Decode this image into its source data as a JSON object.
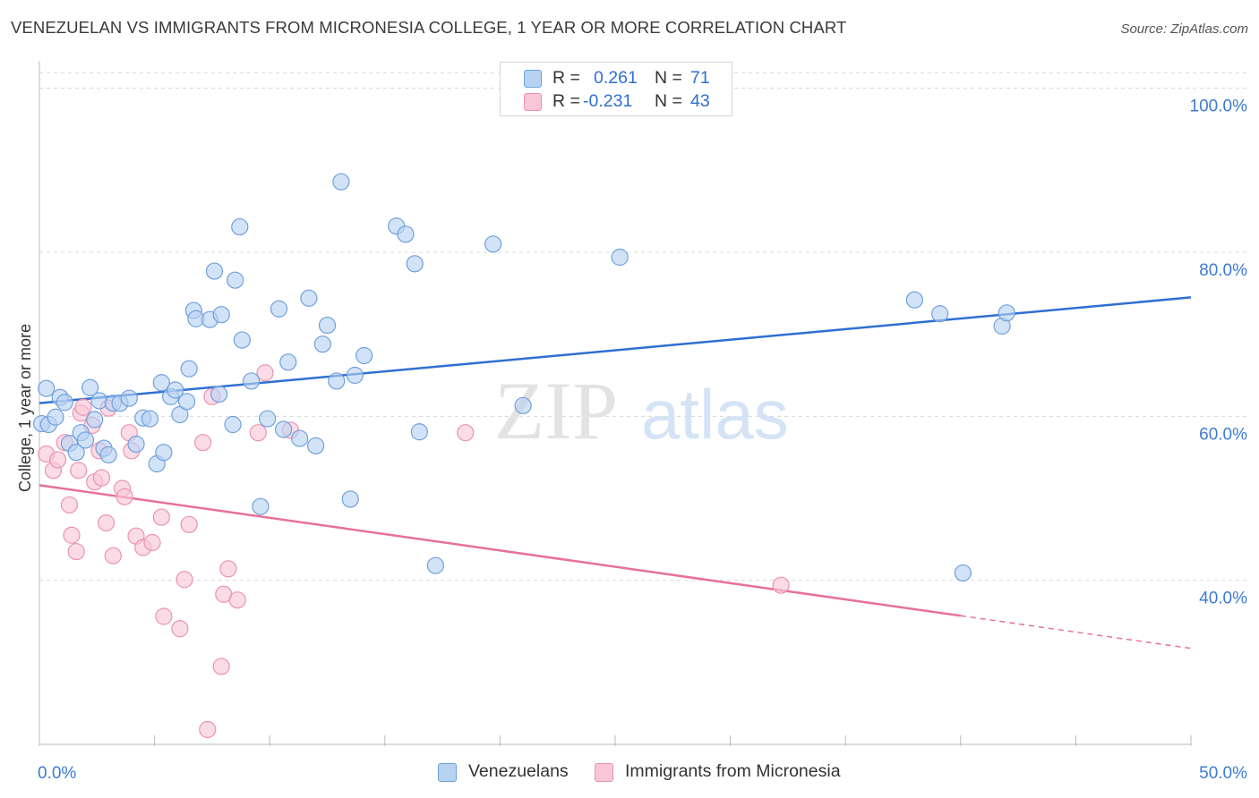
{
  "title": "VENEZUELAN VS IMMIGRANTS FROM MICRONESIA COLLEGE, 1 YEAR OR MORE CORRELATION CHART",
  "source": "Source: ZipAtlas.com",
  "watermark": {
    "zip": "ZIP",
    "atlas": "atlas"
  },
  "colors": {
    "blue_fill": "#b8d2f2",
    "blue_stroke": "#6fa0dc",
    "blue_line": "#2f6fd1",
    "pink_fill": "#f8c6d6",
    "pink_stroke": "#eb92b0",
    "pink_line": "#e8709a",
    "tick_text": "#3d7bd1",
    "grid": "#d8d8d8"
  },
  "legend": {
    "r_label": "R =",
    "n_label": "N =",
    "venezuelans": {
      "r": "0.261",
      "n": "71"
    },
    "micronesia": {
      "r": "-0.231",
      "n": "43"
    }
  },
  "chart_data": {
    "type": "scatter",
    "title": "VENEZUELAN VS IMMIGRANTS FROM MICRONESIA COLLEGE, 1 YEAR OR MORE CORRELATION CHART",
    "xlabel": "",
    "ylabel": "College, 1 year or more",
    "xlim": [
      0,
      50
    ],
    "ylim": [
      20,
      104
    ],
    "x_tick_labels": {
      "min": "0.0%",
      "max": "50.0%"
    },
    "x_tick_count": 11,
    "y_ticks": [
      {
        "value": 40,
        "label": "40.0%"
      },
      {
        "value": 60,
        "label": "60.0%"
      },
      {
        "value": 80,
        "label": "80.0%"
      },
      {
        "value": 100,
        "label": "100.0%"
      }
    ],
    "series": [
      {
        "name": "Venezuelans",
        "color": "#b8d2f2",
        "stroke": "#6fa0dc",
        "trend": {
          "x0": 0,
          "y0": 61.6,
          "x1": 50,
          "y1": 74.5,
          "dash_from": null
        },
        "points": [
          [
            0.1,
            59.1
          ],
          [
            0.3,
            63.4
          ],
          [
            0.4,
            59.0
          ],
          [
            0.7,
            59.9
          ],
          [
            0.9,
            62.3
          ],
          [
            1.1,
            61.7
          ],
          [
            1.3,
            56.7
          ],
          [
            1.6,
            55.6
          ],
          [
            1.8,
            58.0
          ],
          [
            2.0,
            57.1
          ],
          [
            2.2,
            63.5
          ],
          [
            2.4,
            59.6
          ],
          [
            2.6,
            61.9
          ],
          [
            2.8,
            56.1
          ],
          [
            3.0,
            55.3
          ],
          [
            3.2,
            61.6
          ],
          [
            3.5,
            61.6
          ],
          [
            3.9,
            62.2
          ],
          [
            4.2,
            56.6
          ],
          [
            4.5,
            59.8
          ],
          [
            4.8,
            59.7
          ],
          [
            5.1,
            54.2
          ],
          [
            5.3,
            64.1
          ],
          [
            5.4,
            55.6
          ],
          [
            5.7,
            62.4
          ],
          [
            5.9,
            63.2
          ],
          [
            6.1,
            60.2
          ],
          [
            6.4,
            61.8
          ],
          [
            6.5,
            65.8
          ],
          [
            6.7,
            72.9
          ],
          [
            6.8,
            71.9
          ],
          [
            7.4,
            71.8
          ],
          [
            7.6,
            77.7
          ],
          [
            7.8,
            62.7
          ],
          [
            7.9,
            72.4
          ],
          [
            8.4,
            59.0
          ],
          [
            8.5,
            76.6
          ],
          [
            8.7,
            83.1
          ],
          [
            8.8,
            69.3
          ],
          [
            9.2,
            64.3
          ],
          [
            9.6,
            49.0
          ],
          [
            9.9,
            59.7
          ],
          [
            10.4,
            73.1
          ],
          [
            10.6,
            58.4
          ],
          [
            10.8,
            66.6
          ],
          [
            11.3,
            57.3
          ],
          [
            11.7,
            74.4
          ],
          [
            12.0,
            56.4
          ],
          [
            12.3,
            68.8
          ],
          [
            12.5,
            71.1
          ],
          [
            12.9,
            64.3
          ],
          [
            13.1,
            88.6
          ],
          [
            13.5,
            49.9
          ],
          [
            13.7,
            65.0
          ],
          [
            14.1,
            67.4
          ],
          [
            15.5,
            83.2
          ],
          [
            15.9,
            82.2
          ],
          [
            16.3,
            78.6
          ],
          [
            16.5,
            58.1
          ],
          [
            17.2,
            41.8
          ],
          [
            19.7,
            81.0
          ],
          [
            21.0,
            61.3
          ],
          [
            25.2,
            79.4
          ],
          [
            38.0,
            74.2
          ],
          [
            39.1,
            72.5
          ],
          [
            40.1,
            40.9
          ],
          [
            41.8,
            71.0
          ],
          [
            42.0,
            72.6
          ]
        ]
      },
      {
        "name": "Immigrants from Micronesia",
        "color": "#f8c6d6",
        "stroke": "#eb92b0",
        "trend": {
          "x0": 0,
          "y0": 51.6,
          "x1": 50,
          "y1": 31.7,
          "dash_from": 40.0
        },
        "points": [
          [
            0.3,
            55.4
          ],
          [
            0.6,
            53.4
          ],
          [
            0.8,
            54.7
          ],
          [
            1.1,
            56.8
          ],
          [
            1.3,
            49.2
          ],
          [
            1.4,
            45.5
          ],
          [
            1.6,
            43.5
          ],
          [
            1.7,
            53.4
          ],
          [
            1.8,
            60.4
          ],
          [
            1.9,
            61.1
          ],
          [
            2.3,
            58.9
          ],
          [
            2.4,
            52.0
          ],
          [
            2.6,
            55.8
          ],
          [
            2.7,
            52.5
          ],
          [
            2.9,
            47.0
          ],
          [
            3.0,
            61.0
          ],
          [
            3.2,
            43.0
          ],
          [
            3.6,
            51.2
          ],
          [
            3.7,
            50.2
          ],
          [
            3.9,
            58.0
          ],
          [
            4.0,
            55.8
          ],
          [
            4.2,
            45.4
          ],
          [
            4.5,
            44.0
          ],
          [
            4.9,
            44.6
          ],
          [
            5.3,
            47.7
          ],
          [
            5.4,
            35.6
          ],
          [
            6.1,
            34.1
          ],
          [
            6.3,
            40.1
          ],
          [
            6.5,
            46.8
          ],
          [
            7.1,
            56.8
          ],
          [
            7.3,
            21.8
          ],
          [
            7.5,
            62.4
          ],
          [
            7.9,
            29.5
          ],
          [
            8.0,
            38.3
          ],
          [
            8.2,
            41.4
          ],
          [
            8.6,
            37.6
          ],
          [
            9.5,
            58.0
          ],
          [
            9.8,
            65.3
          ],
          [
            10.9,
            58.3
          ],
          [
            18.5,
            58.0
          ],
          [
            32.2,
            39.4
          ]
        ]
      }
    ]
  }
}
